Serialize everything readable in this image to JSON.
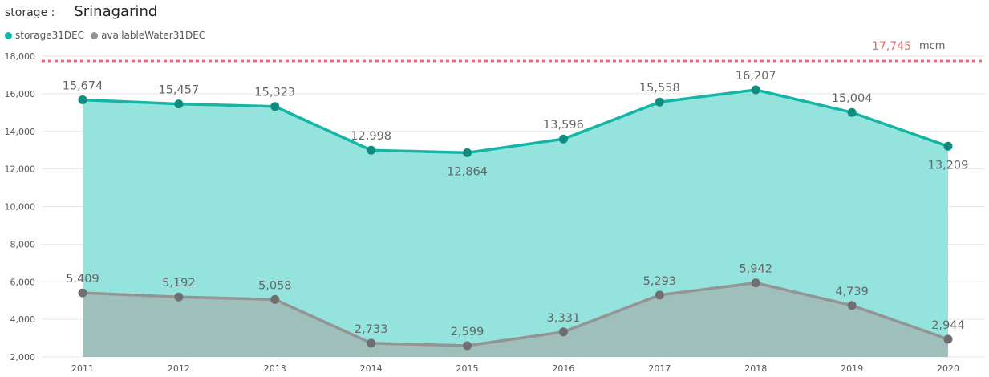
{
  "header": {
    "label": "storage :",
    "value": "Srinagarind"
  },
  "chart_data": {
    "type": "area",
    "x": [
      "2011",
      "2012",
      "2013",
      "2014",
      "2015",
      "2016",
      "2017",
      "2018",
      "2019",
      "2020"
    ],
    "series": [
      {
        "name": "storage31DEC",
        "color": "#12b5a6",
        "fill": "#94e3dc",
        "values": [
          15674,
          15457,
          15323,
          12998,
          12864,
          13596,
          15558,
          16207,
          15004,
          13209
        ],
        "labels": [
          "15,674",
          "15,457",
          "15,323",
          "12,998",
          "12,864",
          "13,596",
          "15,558",
          "16,207",
          "15,004",
          "13,209"
        ]
      },
      {
        "name": "availableWater31DEC",
        "color": "#949494",
        "fill": "#9fbfba",
        "values": [
          5409,
          5192,
          5058,
          2733,
          2599,
          3331,
          5293,
          5942,
          4739,
          2944
        ],
        "labels": [
          "5,409",
          "5,192",
          "5,058",
          "2,733",
          "2,599",
          "3,331",
          "5,293",
          "5,942",
          "4,739",
          "2,944"
        ]
      }
    ],
    "reference_line": {
      "value": 17745,
      "label": "17,745",
      "unit": "mcm",
      "color": "#f3696b"
    },
    "yticks": [
      "2,000",
      "4,000",
      "6,000",
      "8,000",
      "10,000",
      "12,000",
      "14,000",
      "16,000",
      "18,000"
    ],
    "ytick_values": [
      2000,
      4000,
      6000,
      8000,
      10000,
      12000,
      14000,
      16000,
      18000
    ],
    "ylim": [
      2000,
      18000
    ],
    "grid": true,
    "legend_position": "top-left"
  }
}
